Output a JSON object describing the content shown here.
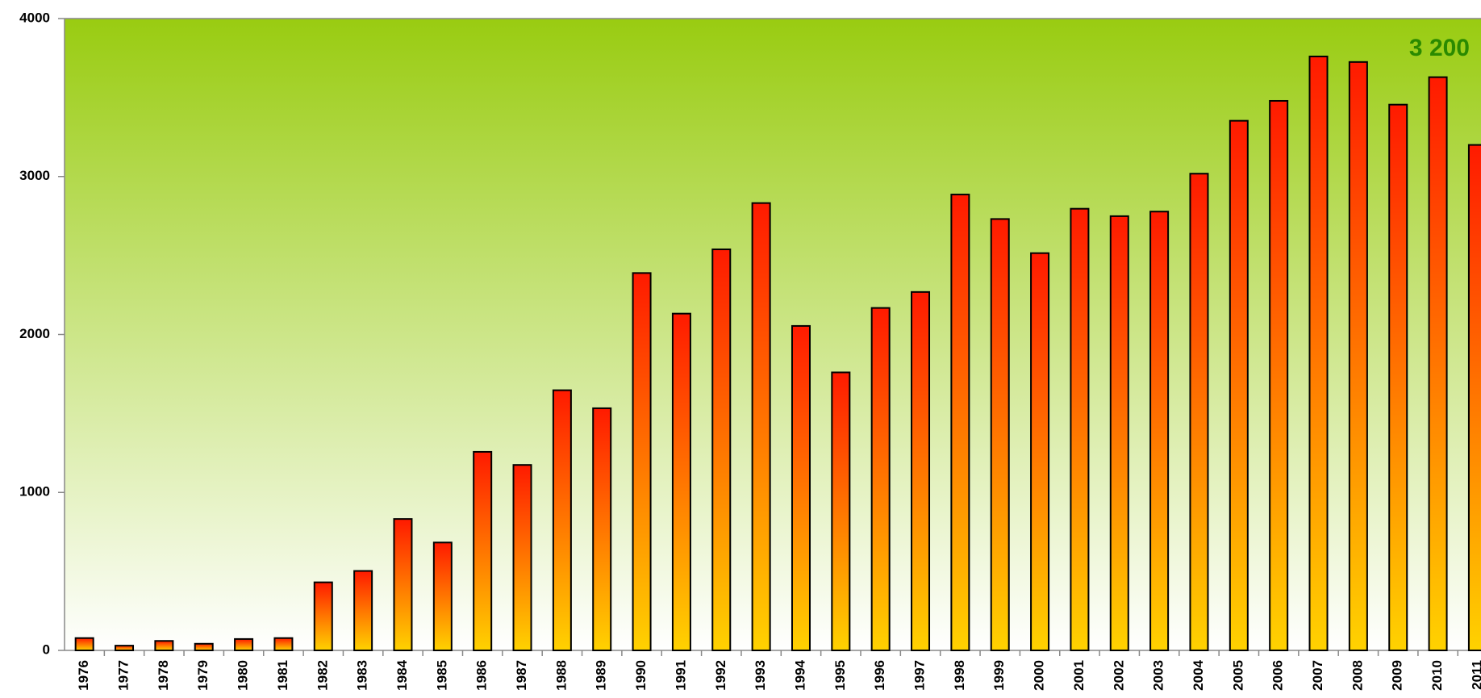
{
  "chart_data": {
    "type": "bar",
    "annotation": "3 200",
    "categories": [
      "1976",
      "1977",
      "1978",
      "1979",
      "1980",
      "1981",
      "1982",
      "1983",
      "1984",
      "1985",
      "1986",
      "1987",
      "1988",
      "1989",
      "1990",
      "1991",
      "1992",
      "1993",
      "1994",
      "1995",
      "1996",
      "1997",
      "1998",
      "1999",
      "2000",
      "2001",
      "2002",
      "2003",
      "2004",
      "2005",
      "2006",
      "2007",
      "2008",
      "2009",
      "2010",
      "2011"
    ],
    "values": [
      78,
      30,
      60,
      42,
      72,
      78,
      431,
      503,
      832,
      683,
      1257,
      1174,
      1647,
      1533,
      2389,
      2132,
      2539,
      2832,
      2054,
      1760,
      2168,
      2269,
      2886,
      2731,
      2515,
      2796,
      2749,
      2778,
      3018,
      3353,
      3479,
      3760,
      3725,
      3455,
      3629,
      3200
    ],
    "colors": [
      "#ff1a00",
      "#ffd200"
    ],
    "background": [
      "#99cc11",
      "#ffffff"
    ],
    "ylim": [
      0,
      4000
    ],
    "yticks": [
      0,
      1000,
      2000,
      3000,
      4000
    ]
  }
}
